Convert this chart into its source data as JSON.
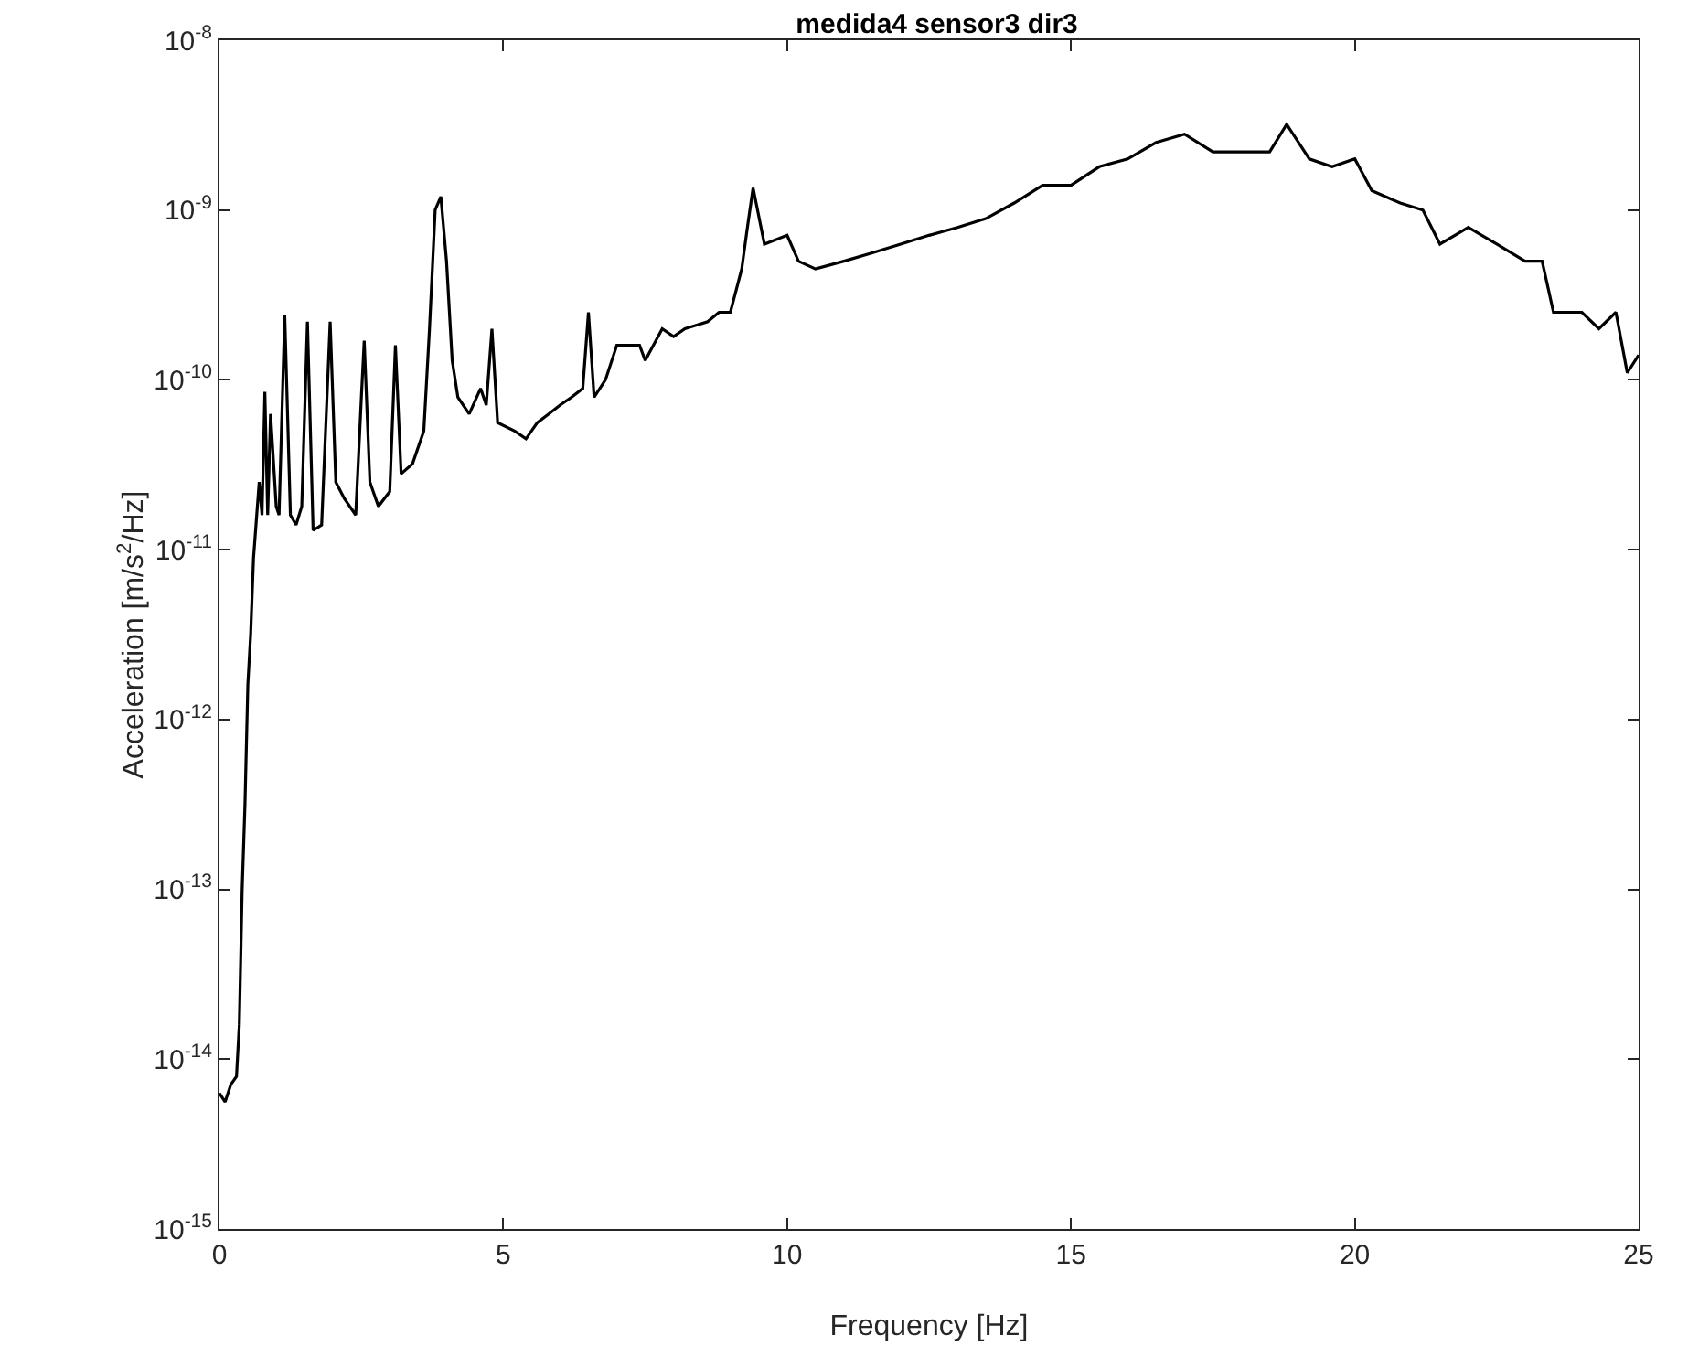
{
  "chart_data": {
    "type": "line",
    "title": "medida4 sensor3 dir3",
    "xlabel": "Frequency [Hz]",
    "ylabel": "Acceleration [m/s$^{2}$/Hz]",
    "log": "y",
    "grid": false,
    "marker": "none",
    "line_style": "solid",
    "xlim": [
      0,
      25
    ],
    "xticks": [
      0,
      5,
      10,
      15,
      20,
      25
    ],
    "ylim": [
      1e-15,
      1e-08
    ],
    "yticks": [
      {
        "value": 1e-15,
        "label": "10$^{-15}$"
      },
      {
        "value": 1e-14,
        "label": "10$^{-14}$"
      },
      {
        "value": 1e-13,
        "label": "10$^{-13}$"
      },
      {
        "value": 1e-12,
        "label": "10$^{-12}$"
      },
      {
        "value": 1e-11,
        "label": "10$^{-11}$"
      },
      {
        "value": 1e-10,
        "label": "10$^{-10}$"
      },
      {
        "value": 1e-09,
        "label": "10$^{-9}$"
      },
      {
        "value": 1e-08,
        "label": "10$^{-8}$"
      }
    ],
    "x": [
      0,
      0.1,
      0.2,
      0.3,
      0.35,
      0.4,
      0.45,
      0.5,
      0.55,
      0.6,
      0.7,
      0.75,
      0.8,
      0.85,
      0.9,
      1.0,
      1.05,
      1.15,
      1.25,
      1.35,
      1.45,
      1.55,
      1.65,
      1.8,
      1.95,
      2.05,
      2.2,
      2.4,
      2.5,
      2.55,
      2.65,
      2.8,
      3.0,
      3.1,
      3.2,
      3.4,
      3.6,
      3.7,
      3.8,
      3.9,
      4.0,
      4.1,
      4.2,
      4.4,
      4.6,
      4.7,
      4.8,
      4.9,
      5.2,
      5.4,
      5.6,
      5.8,
      6.0,
      6.2,
      6.4,
      6.5,
      6.6,
      6.8,
      7.0,
      7.4,
      7.5,
      7.8,
      8.0,
      8.2,
      8.6,
      8.8,
      9.0,
      9.2,
      9.3,
      9.4,
      9.6,
      10.0,
      10.2,
      10.5,
      11,
      11.5,
      12,
      12.5,
      13,
      13.5,
      14,
      14.5,
      15,
      15.5,
      16,
      16.5,
      17,
      17.5,
      18,
      18.5,
      18.8,
      19.2,
      19.6,
      20,
      20.3,
      20.8,
      21.2,
      21.5,
      22,
      22.5,
      23,
      23.3,
      23.5,
      24,
      24.3,
      24.6,
      24.8,
      25
    ],
    "series": [
      {
        "color": "#000000",
        "values": [
          6.3e-15,
          5.6e-15,
          7.1e-15,
          7.9e-15,
          1.6e-14,
          1e-13,
          3.2e-13,
          1.6e-12,
          3.2e-12,
          8.9e-12,
          2.5e-11,
          1.6e-11,
          8.5e-11,
          1.6e-11,
          6.3e-11,
          1.8e-11,
          1.6e-11,
          2.4e-10,
          1.6e-11,
          1.4e-11,
          1.8e-11,
          2.2e-10,
          1.3e-11,
          1.4e-11,
          2.2e-10,
          2.5e-11,
          2e-11,
          1.6e-11,
          7.9e-11,
          1.7e-10,
          2.5e-11,
          1.8e-11,
          2.2e-11,
          1.6e-10,
          2.8e-11,
          3.2e-11,
          5e-11,
          2e-10,
          1e-09,
          1.2e-09,
          5e-10,
          1.3e-10,
          7.9e-11,
          6.3e-11,
          8.9e-11,
          7.1e-11,
          2e-10,
          5.6e-11,
          5e-11,
          4.5e-11,
          5.6e-11,
          6.3e-11,
          7.1e-11,
          7.9e-11,
          8.9e-11,
          2.5e-10,
          7.9e-11,
          1e-10,
          1.6e-10,
          1.6e-10,
          1.3e-10,
          2e-10,
          1.8e-10,
          2e-10,
          2.2e-10,
          2.5e-10,
          2.5e-10,
          4.5e-10,
          7.9e-10,
          1.35e-09,
          6.3e-10,
          7.1e-10,
          5e-10,
          4.5e-10,
          5e-10,
          5.6e-10,
          6.3e-10,
          7.1e-10,
          7.9e-10,
          8.9e-10,
          1.1e-09,
          1.4e-09,
          1.4e-09,
          1.8e-09,
          2e-09,
          2.5e-09,
          2.8e-09,
          2.2e-09,
          2.2e-09,
          2.2e-09,
          3.2e-09,
          2e-09,
          1.8e-09,
          2e-09,
          1.3e-09,
          1.1e-09,
          1e-09,
          6.3e-10,
          7.9e-10,
          6.3e-10,
          5e-10,
          5e-10,
          2.5e-10,
          2.5e-10,
          2e-10,
          2.5e-10,
          1.1e-10,
          1.4e-10
        ]
      }
    ]
  }
}
